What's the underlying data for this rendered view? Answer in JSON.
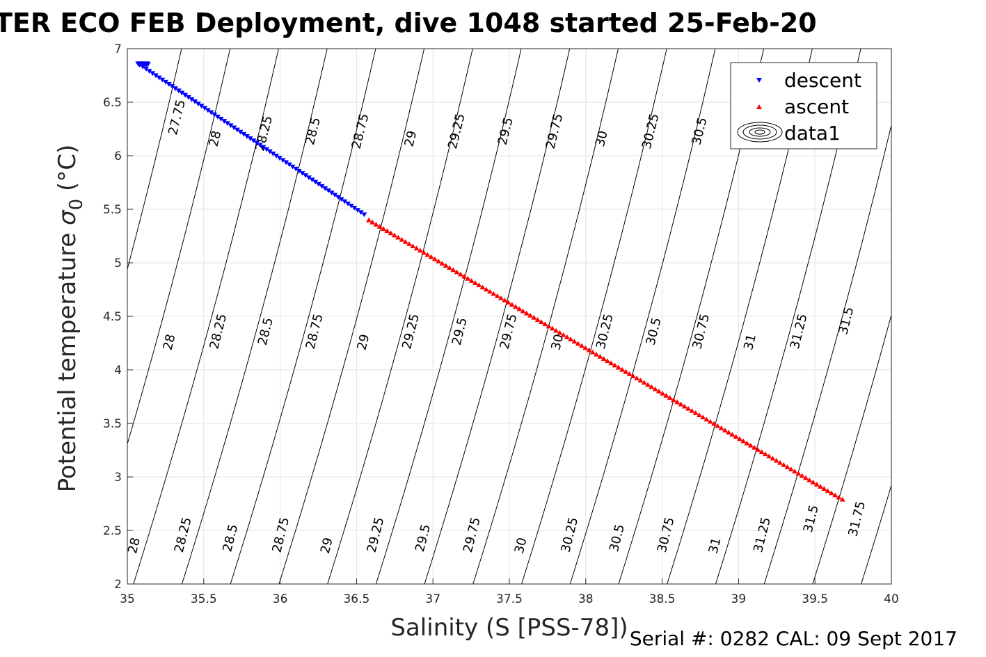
{
  "chart_data": {
    "type": "scatter",
    "title": "TER ECO FEB Deployment, dive 1048 started 25-Feb-20",
    "xlabel": "Salinity (S [PSS-78])",
    "ylabel_main": "Potential temperature ",
    "ylabel_symbol": "σ",
    "ylabel_subscript": "0",
    "ylabel_unit": " (°C)",
    "xlim": [
      35,
      40
    ],
    "ylim": [
      2,
      7
    ],
    "xticks": [
      35,
      35.5,
      36,
      36.5,
      37,
      37.5,
      38,
      38.5,
      39,
      39.5,
      40
    ],
    "xtick_labels": [
      "35",
      "35.5",
      "36",
      "36.5",
      "37",
      "37.5",
      "38",
      "38.5",
      "39",
      "39.5",
      "40"
    ],
    "yticks": [
      2,
      2.5,
      3,
      3.5,
      4,
      4.5,
      5,
      5.5,
      6,
      6.5,
      7
    ],
    "ytick_labels": [
      "2",
      "2.5",
      "3",
      "3.5",
      "4",
      "4.5",
      "5",
      "5.5",
      "6",
      "6.5",
      "7"
    ],
    "grid": true,
    "legend_position": "top-right",
    "series": [
      {
        "name": "descent",
        "marker": "triangle-down",
        "color": "#0000ff",
        "x_range": [
          35.08,
          36.55
        ],
        "y_range": [
          6.85,
          5.45
        ],
        "count": 70
      },
      {
        "name": "ascent",
        "marker": "triangle-up",
        "color": "#ff0000",
        "x_range": [
          36.58,
          39.68
        ],
        "y_range": [
          5.4,
          2.79
        ],
        "count": 130
      }
    ],
    "legend_entries": [
      "descent",
      "ascent",
      "data1"
    ],
    "contour_levels": [
      27.75,
      28,
      28.25,
      28.5,
      28.75,
      29,
      29.25,
      29.5,
      29.75,
      30,
      30.25,
      30.5,
      30.75,
      31,
      31.25,
      31.5,
      31.75
    ],
    "contour_labels": [
      {
        "text": "27.75",
        "s": 35.35,
        "t": 6.35
      },
      {
        "text": "28",
        "s": 35.6,
        "t": 6.15
      },
      {
        "text": "28.25",
        "s": 35.92,
        "t": 6.2
      },
      {
        "text": "28.5",
        "s": 36.24,
        "t": 6.22
      },
      {
        "text": "28.75",
        "s": 36.55,
        "t": 6.22
      },
      {
        "text": "29",
        "s": 36.88,
        "t": 6.15
      },
      {
        "text": "29.25",
        "s": 37.18,
        "t": 6.22
      },
      {
        "text": "29.5",
        "s": 37.5,
        "t": 6.22
      },
      {
        "text": "29.75",
        "s": 37.82,
        "t": 6.22
      },
      {
        "text": "30",
        "s": 38.13,
        "t": 6.15
      },
      {
        "text": "30.25",
        "s": 38.45,
        "t": 6.22
      },
      {
        "text": "30.5",
        "s": 38.77,
        "t": 6.22
      },
      {
        "text": "28",
        "s": 35.3,
        "t": 4.25
      },
      {
        "text": "28.25",
        "s": 35.62,
        "t": 4.35
      },
      {
        "text": "28.5",
        "s": 35.93,
        "t": 4.35
      },
      {
        "text": "28.75",
        "s": 36.25,
        "t": 4.35
      },
      {
        "text": "29",
        "s": 36.57,
        "t": 4.25
      },
      {
        "text": "29.25",
        "s": 36.88,
        "t": 4.35
      },
      {
        "text": "29.5",
        "s": 37.2,
        "t": 4.35
      },
      {
        "text": "29.75",
        "s": 37.52,
        "t": 4.35
      },
      {
        "text": "30",
        "s": 37.84,
        "t": 4.25
      },
      {
        "text": "30.25",
        "s": 38.15,
        "t": 4.35
      },
      {
        "text": "30.5",
        "s": 38.47,
        "t": 4.35
      },
      {
        "text": "30.75",
        "s": 38.78,
        "t": 4.35
      },
      {
        "text": "31",
        "s": 39.1,
        "t": 4.25
      },
      {
        "text": "31.25",
        "s": 39.42,
        "t": 4.35
      },
      {
        "text": "31.5",
        "s": 39.73,
        "t": 4.45
      },
      {
        "text": "28",
        "s": 35.07,
        "t": 2.35
      },
      {
        "text": "28.25",
        "s": 35.39,
        "t": 2.45
      },
      {
        "text": "28.5",
        "s": 35.7,
        "t": 2.42
      },
      {
        "text": "28.75",
        "s": 36.03,
        "t": 2.45
      },
      {
        "text": "29",
        "s": 36.33,
        "t": 2.35
      },
      {
        "text": "29.25",
        "s": 36.65,
        "t": 2.45
      },
      {
        "text": "29.5",
        "s": 36.96,
        "t": 2.42
      },
      {
        "text": "29.75",
        "s": 37.28,
        "t": 2.45
      },
      {
        "text": "30",
        "s": 37.6,
        "t": 2.35
      },
      {
        "text": "30.25",
        "s": 37.92,
        "t": 2.45
      },
      {
        "text": "30.5",
        "s": 38.23,
        "t": 2.42
      },
      {
        "text": "30.75",
        "s": 38.55,
        "t": 2.45
      },
      {
        "text": "31",
        "s": 38.87,
        "t": 2.35
      },
      {
        "text": "31.25",
        "s": 39.18,
        "t": 2.45
      },
      {
        "text": "31.5",
        "s": 39.5,
        "t": 2.6
      },
      {
        "text": "31.75",
        "s": 39.8,
        "t": 2.6
      }
    ]
  },
  "footer": {
    "serial": "Serial #: 0282  CAL: 09 Sept 2017"
  }
}
